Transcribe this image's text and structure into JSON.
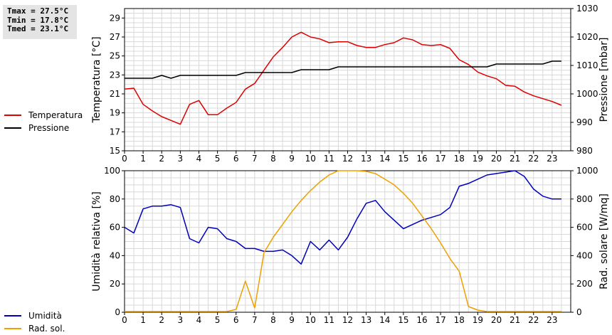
{
  "stats": {
    "tmax": "Tmax = 27.5°C",
    "tmin": "Tmin = 17.8°C",
    "tmed": "Tmed = 23.1°C"
  },
  "chart_data": [
    {
      "type": "line",
      "ylabel": "Temperatura [°C]",
      "y2label": "Pressione [mbar]",
      "xlim": [
        0,
        24
      ],
      "ylim": [
        15,
        30
      ],
      "y2lim": [
        980,
        1030
      ],
      "x_ticks": [
        0,
        1,
        2,
        3,
        4,
        5,
        6,
        7,
        8,
        9,
        10,
        11,
        12,
        13,
        14,
        15,
        16,
        17,
        18,
        19,
        20,
        21,
        22,
        23
      ],
      "y_ticks": [
        15,
        17,
        19,
        21,
        23,
        25,
        27,
        29
      ],
      "y2_ticks": [
        980,
        990,
        1000,
        1010,
        1020,
        1030
      ],
      "grid": true,
      "legend_position": "left",
      "series": [
        {
          "name": "Temperatura",
          "color": "#dd0000",
          "axis": "left",
          "x": [
            0,
            0.5,
            1,
            1.5,
            2,
            2.5,
            3,
            3.5,
            4,
            4.5,
            5,
            5.5,
            6,
            6.5,
            7,
            7.5,
            8,
            8.5,
            9,
            9.5,
            10,
            10.5,
            11,
            11.5,
            12,
            12.5,
            13,
            13.5,
            14,
            14.5,
            15,
            15.5,
            16,
            16.5,
            17,
            17.5,
            18,
            18.5,
            19,
            19.5,
            20,
            20.5,
            21,
            21.5,
            22,
            22.5,
            23,
            23.5
          ],
          "y": [
            21.5,
            21.6,
            19.9,
            19.2,
            18.6,
            18.2,
            17.8,
            19.9,
            20.3,
            18.8,
            18.8,
            19.5,
            20.1,
            21.5,
            22.1,
            23.5,
            24.9,
            25.9,
            27.0,
            27.5,
            27.0,
            26.8,
            26.4,
            26.5,
            26.5,
            26.1,
            25.9,
            25.9,
            26.2,
            26.4,
            26.9,
            26.7,
            26.2,
            26.1,
            26.2,
            25.8,
            24.6,
            24.1,
            23.3,
            22.9,
            22.6,
            21.9,
            21.8,
            21.2,
            20.8,
            20.5,
            20.2,
            19.8
          ]
        },
        {
          "name": "Pressione",
          "color": "#000000",
          "axis": "right",
          "x": [
            0,
            0.5,
            1,
            1.5,
            2,
            2.5,
            3,
            3.5,
            4,
            4.5,
            5,
            5.5,
            6,
            6.5,
            7,
            7.5,
            8,
            8.5,
            9,
            9.5,
            10,
            10.5,
            11,
            11.5,
            12,
            12.5,
            13,
            13.5,
            14,
            14.5,
            15,
            15.5,
            16,
            16.5,
            17,
            17.5,
            18,
            18.5,
            19,
            19.5,
            20,
            20.5,
            21,
            21.5,
            22,
            22.5,
            23,
            23.5
          ],
          "y": [
            1005.5,
            1005.5,
            1005.5,
            1005.5,
            1006.5,
            1005.5,
            1006.5,
            1006.5,
            1006.5,
            1006.5,
            1006.5,
            1006.5,
            1006.5,
            1007.5,
            1007.5,
            1007.5,
            1007.5,
            1007.5,
            1007.5,
            1008.5,
            1008.5,
            1008.5,
            1008.5,
            1009.5,
            1009.5,
            1009.5,
            1009.5,
            1009.5,
            1009.5,
            1009.5,
            1009.5,
            1009.5,
            1009.5,
            1009.5,
            1009.5,
            1009.5,
            1009.5,
            1009.5,
            1009.5,
            1009.5,
            1010.5,
            1010.5,
            1010.5,
            1010.5,
            1010.5,
            1010.5,
            1011.5,
            1011.5
          ]
        }
      ]
    },
    {
      "type": "line",
      "ylabel": "Umidità relativa [%]",
      "y2label": "Rad. solare [W/mq]",
      "xlim": [
        0,
        24
      ],
      "ylim": [
        0,
        100
      ],
      "y2lim": [
        0,
        1000
      ],
      "x_ticks": [
        0,
        1,
        2,
        3,
        4,
        5,
        6,
        7,
        8,
        9,
        10,
        11,
        12,
        13,
        14,
        15,
        16,
        17,
        18,
        19,
        20,
        21,
        22,
        23
      ],
      "y_ticks": [
        0,
        20,
        40,
        60,
        80,
        100
      ],
      "y2_ticks": [
        0,
        200,
        400,
        600,
        800,
        1000
      ],
      "grid": true,
      "legend_position": "left",
      "series": [
        {
          "name": "Umidità",
          "color": "#0000bb",
          "axis": "left",
          "x": [
            0,
            0.5,
            1,
            1.5,
            2,
            2.5,
            3,
            3.5,
            4,
            4.5,
            5,
            5.5,
            6,
            6.5,
            7,
            7.5,
            8,
            8.5,
            9,
            9.5,
            10,
            10.5,
            11,
            11.5,
            12,
            12.5,
            13,
            13.5,
            14,
            14.5,
            15,
            15.5,
            16,
            16.5,
            17,
            17.5,
            18,
            18.5,
            19,
            19.5,
            20,
            20.5,
            21,
            21.5,
            22,
            22.5,
            23,
            23.5
          ],
          "y": [
            60,
            56,
            73,
            75,
            75,
            76,
            74,
            52,
            49,
            60,
            59,
            52,
            50,
            45,
            45,
            43,
            43,
            44,
            40,
            34,
            50,
            44,
            51,
            44,
            53,
            66,
            77,
            79,
            71,
            65,
            59,
            62,
            65,
            67,
            69,
            74,
            89,
            91,
            94,
            97,
            98,
            99,
            100,
            96,
            87,
            82,
            80,
            80
          ]
        },
        {
          "name": "Rad. sol.",
          "color": "#eea000",
          "axis": "right",
          "x": [
            0,
            0.5,
            1,
            1.5,
            2,
            2.5,
            3,
            3.5,
            4,
            4.5,
            5,
            5.5,
            6,
            6.5,
            7,
            7.5,
            8,
            8.5,
            9,
            9.5,
            10,
            10.5,
            11,
            11.5,
            12,
            12.5,
            13,
            13.5,
            14,
            14.5,
            15,
            15.5,
            16,
            16.5,
            17,
            17.5,
            18,
            18.5,
            19,
            19.5,
            20,
            20.5,
            21,
            21.5,
            22,
            22.5,
            23,
            23.5
          ],
          "y": [
            5,
            5,
            5,
            5,
            5,
            5,
            5,
            5,
            5,
            5,
            5,
            5,
            20,
            220,
            30,
            420,
            530,
            620,
            710,
            790,
            860,
            920,
            970,
            1000,
            1000,
            1000,
            995,
            980,
            940,
            900,
            840,
            770,
            680,
            590,
            490,
            380,
            290,
            40,
            15,
            5,
            5,
            5,
            5,
            5,
            5,
            5,
            5,
            5
          ]
        }
      ]
    }
  ]
}
